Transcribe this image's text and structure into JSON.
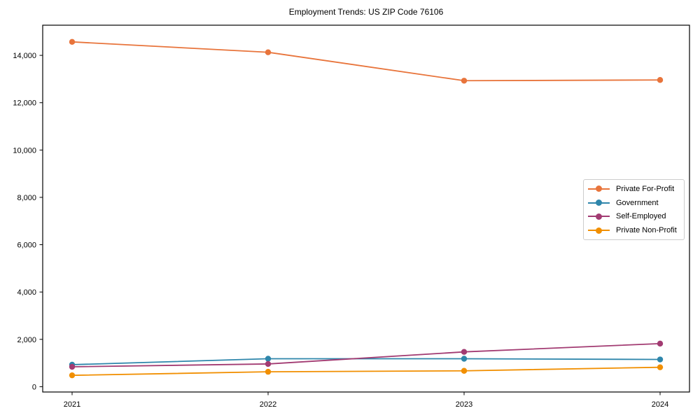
{
  "figure": {
    "background": "#ffffff"
  },
  "chart_data": {
    "type": "line",
    "title": "Employment Trends: US ZIP Code 76106",
    "xlabel": "",
    "ylabel": "",
    "categories": [
      2021,
      2022,
      2023,
      2024
    ],
    "x_tick_labels": [
      "2021",
      "2022",
      "2023",
      "2024"
    ],
    "y_ticks": [
      0,
      2000,
      4000,
      6000,
      8000,
      10000,
      12000,
      14000
    ],
    "y_tick_labels": [
      "0",
      "2,000",
      "4,000",
      "6,000",
      "8,000",
      "10,000",
      "12,000",
      "14,000"
    ],
    "xlim": [
      2020.85,
      2024.15
    ],
    "ylim": [
      -225,
      15275
    ],
    "grid": false,
    "legend_position": "center right",
    "series": [
      {
        "name": "Private For-Profit",
        "color": "#e8743b",
        "values": [
          14570,
          14130,
          12930,
          12960
        ]
      },
      {
        "name": "Government",
        "color": "#2e86ab",
        "values": [
          930,
          1180,
          1180,
          1150
        ]
      },
      {
        "name": "Self-Employed",
        "color": "#a23b72",
        "values": [
          840,
          960,
          1470,
          1820
        ]
      },
      {
        "name": "Private Non-Profit",
        "color": "#f18f01",
        "values": [
          480,
          630,
          670,
          820
        ]
      }
    ]
  }
}
